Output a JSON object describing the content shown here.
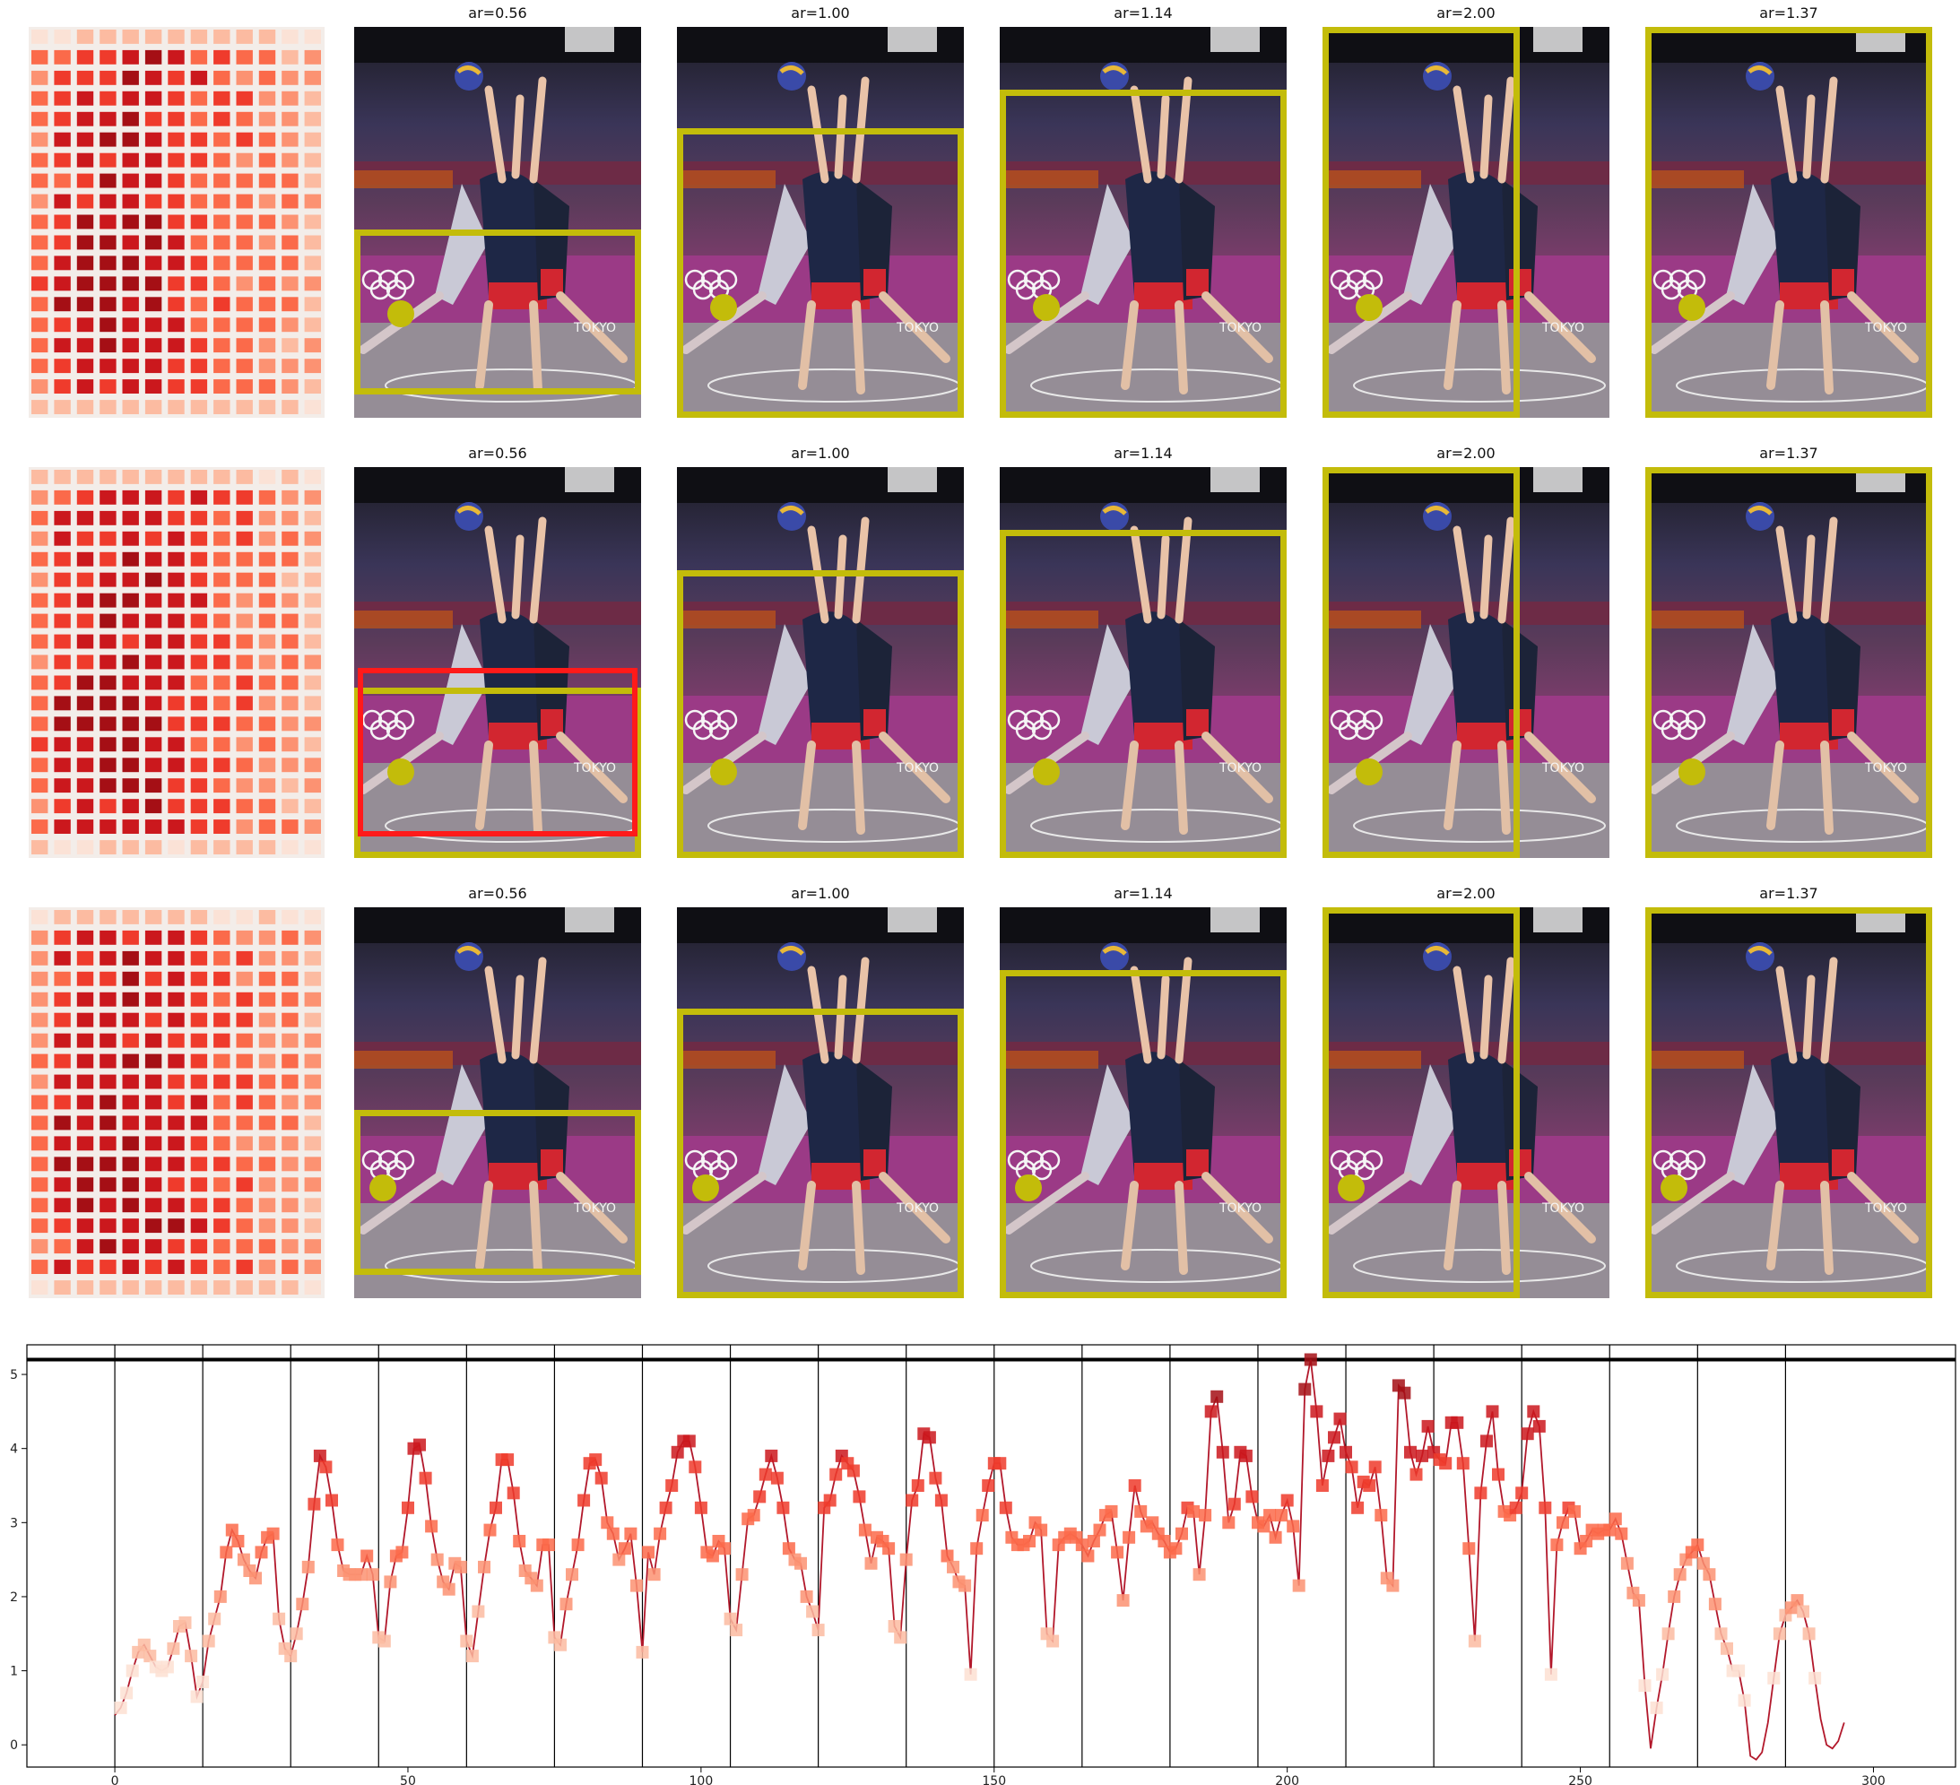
{
  "panels": {
    "titles": [
      "ar=0.56",
      "ar=1.00",
      "ar=1.14",
      "ar=2.00",
      "ar=1.37"
    ],
    "crop_color": "#c3bc0a",
    "highlight_color": "#ff1a1a"
  },
  "heatmap_colors": [
    "#fbe2d6",
    "#fcbba1",
    "#fc9272",
    "#fb6a4a",
    "#ef3b2c",
    "#cb181d",
    "#a50f15"
  ],
  "chart_data": {
    "type": "line",
    "x_start": 0,
    "series_color": "#b2182b",
    "ylim": [
      -0.3,
      5.4
    ],
    "xlim": [
      -15,
      314
    ],
    "yticks": [
      0,
      1,
      2,
      3,
      4,
      5
    ],
    "xticks": [
      0,
      50,
      100,
      150,
      200,
      250,
      300
    ],
    "threshold": 5.2,
    "vlines": [
      0,
      15,
      30,
      45,
      60,
      75,
      90,
      105,
      120,
      135,
      150,
      165,
      180,
      195,
      210,
      225,
      240,
      255,
      270,
      285
    ],
    "values": [
      0.4,
      0.5,
      0.7,
      1.0,
      1.25,
      1.35,
      1.2,
      1.05,
      1.0,
      1.05,
      1.3,
      1.6,
      1.65,
      1.2,
      0.65,
      0.85,
      1.4,
      1.7,
      2.0,
      2.6,
      2.9,
      2.75,
      2.5,
      2.35,
      2.25,
      2.6,
      2.8,
      2.85,
      1.7,
      1.3,
      1.2,
      1.5,
      1.9,
      2.4,
      3.25,
      3.9,
      3.75,
      3.3,
      2.7,
      2.35,
      2.3,
      2.3,
      2.3,
      2.55,
      2.3,
      1.45,
      1.4,
      2.2,
      2.55,
      2.6,
      3.2,
      4.0,
      4.05,
      3.6,
      2.95,
      2.5,
      2.2,
      2.1,
      2.45,
      2.4,
      1.4,
      1.2,
      1.8,
      2.4,
      2.9,
      3.2,
      3.85,
      3.85,
      3.4,
      2.75,
      2.35,
      2.25,
      2.15,
      2.7,
      2.7,
      1.45,
      1.35,
      1.9,
      2.3,
      2.7,
      3.3,
      3.8,
      3.85,
      3.6,
      3.0,
      2.85,
      2.5,
      2.65,
      2.85,
      2.15,
      1.25,
      2.6,
      2.3,
      2.85,
      3.2,
      3.5,
      3.95,
      4.1,
      4.1,
      3.75,
      3.2,
      2.6,
      2.55,
      2.75,
      2.65,
      1.7,
      1.55,
      2.3,
      3.05,
      3.1,
      3.35,
      3.65,
      3.9,
      3.6,
      3.2,
      2.65,
      2.5,
      2.45,
      2.0,
      1.8,
      1.55,
      3.2,
      3.3,
      3.65,
      3.9,
      3.8,
      3.7,
      3.35,
      2.9,
      2.45,
      2.8,
      2.75,
      2.65,
      1.6,
      1.45,
      2.5,
      3.3,
      3.5,
      4.2,
      4.15,
      3.6,
      3.3,
      2.55,
      2.4,
      2.2,
      2.15,
      0.95,
      2.65,
      3.1,
      3.5,
      3.8,
      3.8,
      3.2,
      2.8,
      2.7,
      2.7,
      2.75,
      3.0,
      2.9,
      1.5,
      1.4,
      2.7,
      2.8,
      2.85,
      2.8,
      2.7,
      2.55,
      2.75,
      2.9,
      3.1,
      3.15,
      2.6,
      1.95,
      2.8,
      3.5,
      3.15,
      2.95,
      3.0,
      2.85,
      2.75,
      2.6,
      2.65,
      2.85,
      3.2,
      3.15,
      2.3,
      3.1,
      4.5,
      4.7,
      3.95,
      3.0,
      3.25,
      3.95,
      3.9,
      3.35,
      3.0,
      2.95,
      3.1,
      2.8,
      3.1,
      3.3,
      2.95,
      2.15,
      4.8,
      5.2,
      4.5,
      3.5,
      3.9,
      4.15,
      4.4,
      3.95,
      3.75,
      3.2,
      3.55,
      3.5,
      3.75,
      3.1,
      2.25,
      2.15,
      4.85,
      4.75,
      3.95,
      3.65,
      3.9,
      4.3,
      3.95,
      3.85,
      3.8,
      4.35,
      4.35,
      3.8,
      2.65,
      1.4,
      3.4,
      4.1,
      4.5,
      3.65,
      3.15,
      3.1,
      3.2,
      3.4,
      4.2,
      4.5,
      4.3,
      3.2,
      0.95,
      2.7,
      3.0,
      3.2,
      3.15,
      2.65,
      2.75,
      2.9,
      2.85,
      2.9,
      2.9,
      3.05,
      2.85,
      2.45,
      2.05,
      1.95,
      0.8,
      -0.05,
      0.5,
      0.95,
      1.5,
      2.0,
      2.3,
      2.5,
      2.6,
      2.7,
      2.45,
      2.3,
      1.9,
      1.5,
      1.3,
      1.0,
      1.0,
      0.6,
      -0.15,
      -0.2,
      -0.1,
      0.3,
      0.9,
      1.5,
      1.75,
      1.85,
      1.95,
      1.8,
      1.5,
      0.9,
      0.35,
      0.0,
      -0.05,
      0.05,
      0.3
    ]
  }
}
